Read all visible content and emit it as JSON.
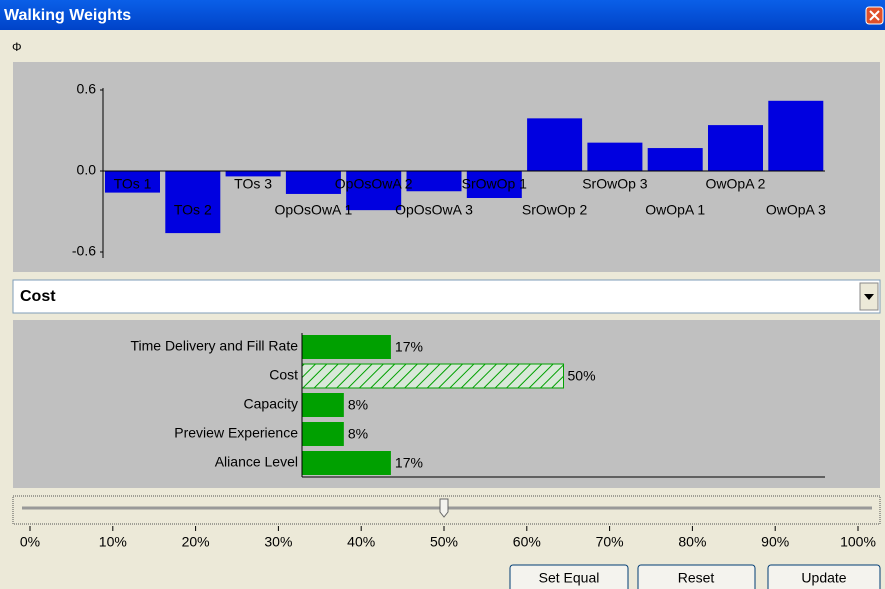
{
  "window": {
    "title": "Walking Weights"
  },
  "chart_data": {
    "type": "bar",
    "categories": [
      "TOs 1",
      "TOs 2",
      "TOs 3",
      "OpOsOwA 1",
      "OpOsOwA 2",
      "OpOsOwA 3",
      "SrOwOp 1",
      "SrOwOp 2",
      "SrOwOp 3",
      "OwOpA 1",
      "OwOpA 2",
      "OwOpA 3"
    ],
    "values": [
      -0.16,
      -0.46,
      -0.04,
      -0.17,
      -0.29,
      -0.15,
      -0.2,
      0.39,
      0.21,
      0.17,
      0.34,
      0.52
    ],
    "color": "#0000e0",
    "ylim": [
      -0.6,
      0.6
    ],
    "yticks": [
      0.6,
      {
        "value": 0,
        "label": "0.0"
      },
      -0.6
    ]
  },
  "selector": {
    "selected": "Cost"
  },
  "weights": {
    "type": "bar",
    "categories": [
      "Time Delivery and Fill Rate",
      "Cost",
      "Capacity",
      "Preview Experience",
      "Aliance Level"
    ],
    "values": [
      17,
      50,
      8,
      8,
      17
    ],
    "value_labels": [
      "17%",
      "50%",
      "8%",
      "8%",
      "17%"
    ],
    "color": "#00a000",
    "xlim": [
      0,
      100
    ]
  },
  "slider": {
    "value": 50,
    "xlim": [
      0,
      100
    ],
    "xticks": [
      {
        "value": 0,
        "label": "0%"
      },
      {
        "value": 10,
        "label": "10%"
      },
      {
        "value": 20,
        "label": "20%"
      },
      {
        "value": 30,
        "label": "30%"
      },
      {
        "value": 40,
        "label": "40%"
      },
      {
        "value": 50,
        "label": "50%"
      },
      {
        "value": 60,
        "label": "60%"
      },
      {
        "value": 70,
        "label": "70%"
      },
      {
        "value": 80,
        "label": "80%"
      },
      {
        "value": 90,
        "label": "90%"
      },
      {
        "value": 100,
        "label": "100%"
      }
    ]
  },
  "buttons": [
    "Set Equal",
    "Reset",
    "Update"
  ]
}
